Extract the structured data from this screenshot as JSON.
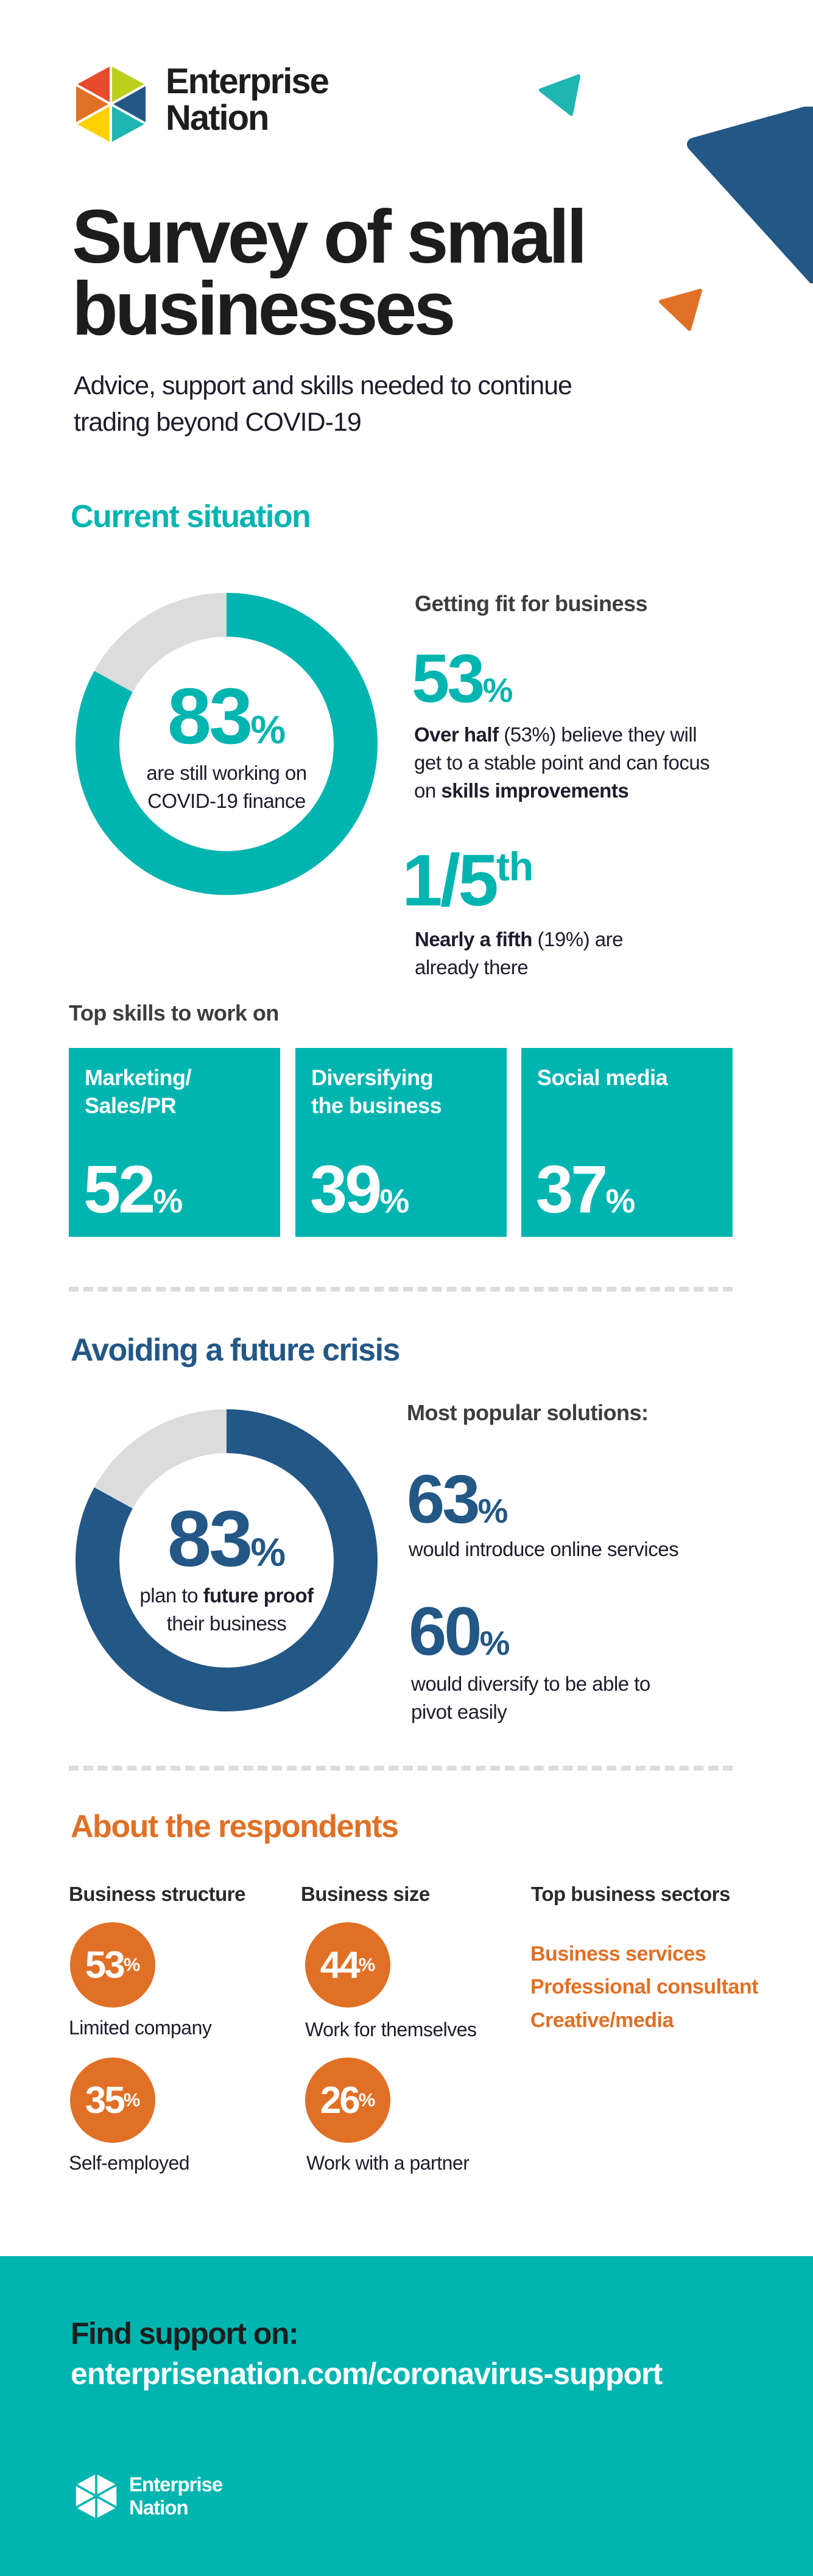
{
  "brand": {
    "name_line1": "Enterprise",
    "name_line2": "Nation",
    "logo_colors": [
      "#e84a2e",
      "#bccf1c",
      "#235785",
      "#1fb5b0",
      "#ffd100",
      "#e07025"
    ]
  },
  "colors": {
    "teal": "#00b5b0",
    "blue": "#235785",
    "orange": "#e07025",
    "gray": "#dcdcdc"
  },
  "header": {
    "title_line1": "Survey of small",
    "title_line2": "businesses",
    "subtitle_line1": "Advice, support and skills needed to continue",
    "subtitle_line2": "trading beyond COVID-19"
  },
  "current": {
    "heading": "Current situation",
    "donut": {
      "percent": 83,
      "value": "83",
      "unit": "%",
      "caption_line1": "are still working on",
      "caption_line2": "COVID-19 finance"
    },
    "fit_heading": "Getting fit for business",
    "stat1": {
      "value": "53",
      "unit": "%",
      "bold1": "Over half",
      "text1": " (53%) believe they will",
      "text2": "get to a stable point and can focus",
      "text3": "on ",
      "bold2": "skills improvements"
    },
    "stat2": {
      "value": "1/5",
      "sup": "th",
      "bold": "Nearly a fifth",
      "text1": " (19%) are",
      "text2": "already there"
    },
    "skills_heading": "Top skills to work on",
    "skills": [
      {
        "line1": "Marketing/",
        "line2": "Sales/PR",
        "value": "52",
        "unit": "%"
      },
      {
        "line1": "Diversifying",
        "line2": "the business",
        "value": "39",
        "unit": "%"
      },
      {
        "line1": "Social media",
        "line2": "",
        "value": "37",
        "unit": "%"
      }
    ]
  },
  "crisis": {
    "heading": "Avoiding a future crisis",
    "donut": {
      "percent": 83,
      "value": "83",
      "unit": "%",
      "caption_pre": "plan to ",
      "caption_bold": "future proof",
      "caption_line2": "their business"
    },
    "solutions_heading": "Most popular solutions:",
    "solutions": [
      {
        "value": "63",
        "unit": "%",
        "line1": "would introduce online services",
        "line2": ""
      },
      {
        "value": "60",
        "unit": "%",
        "line1": "would diversify to be able to",
        "line2": "pivot easily"
      }
    ]
  },
  "respondents": {
    "heading": "About the respondents",
    "structure_heading": "Business structure",
    "size_heading": "Business size",
    "sectors_heading": "Top business sectors",
    "structure": [
      {
        "value": "53",
        "unit": "%",
        "label": "Limited company"
      },
      {
        "value": "35",
        "unit": "%",
        "label": "Self-employed"
      }
    ],
    "size": [
      {
        "value": "44",
        "unit": "%",
        "label": "Work for themselves"
      },
      {
        "value": "26",
        "unit": "%",
        "label": "Work with a partner"
      }
    ],
    "sectors": [
      "Business services",
      "Professional consultant",
      "Creative/media"
    ]
  },
  "footer": {
    "cta": "Find support on:",
    "url": "enterprisenation.com/coronavirus-support",
    "brand_line1": "Enterprise",
    "brand_line2": "Nation"
  }
}
